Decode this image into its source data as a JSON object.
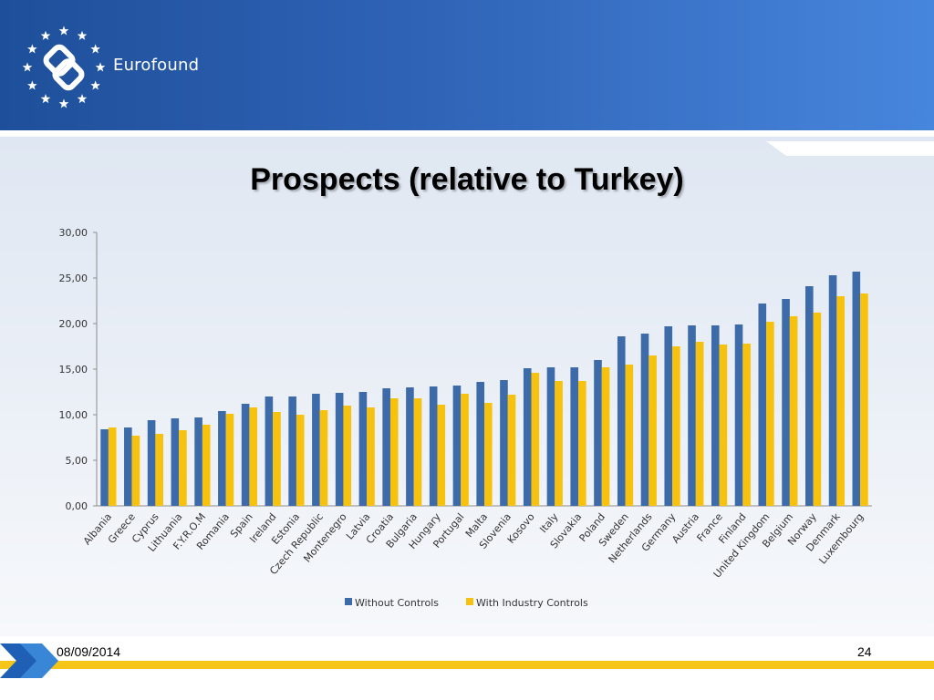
{
  "header": {
    "brand": "Eurofound",
    "icon": "eurofound-logo-icon"
  },
  "slide": {
    "title": "Prospects (relative to Turkey)"
  },
  "footer": {
    "date": "08/09/2014",
    "page_number": "24"
  },
  "colors": {
    "without_controls": "#3d6aa8",
    "with_industry_controls": "#f6c20e",
    "header_dark": "#1e4f9a",
    "header_light": "#4786dd",
    "footer_gold": "#f5c518"
  },
  "chart_data": {
    "type": "bar",
    "ylim": [
      0,
      30
    ],
    "yticks": [
      "0,00",
      "5,00",
      "10,00",
      "15,00",
      "20,00",
      "25,00",
      "30,00"
    ],
    "grid": false,
    "legend_position": "bottom",
    "categories": [
      "Albania",
      "Greece",
      "Cyprus",
      "Lithuania",
      "F.Y.R.O.M",
      "Romania",
      "Spain",
      "Ireland",
      "Estonia",
      "Czech Republic",
      "Montenegro",
      "Latvia",
      "Croatia",
      "Bulgaria",
      "Hungary",
      "Portugal",
      "Malta",
      "Slovenia",
      "Kosovo",
      "Italy",
      "Slovakia",
      "Poland",
      "Sweden",
      "Netherlands",
      "Germany",
      "Austria",
      "France",
      "Finland",
      "United Kingdom",
      "Belgium",
      "Norway",
      "Denmark",
      "Luxembourg"
    ],
    "series": [
      {
        "name": "Without Controls",
        "values": [
          8.4,
          8.6,
          9.4,
          9.6,
          9.7,
          10.4,
          11.2,
          12.0,
          12.0,
          12.3,
          12.4,
          12.5,
          12.9,
          13.0,
          13.1,
          13.2,
          13.6,
          13.8,
          15.1,
          15.2,
          15.2,
          16.0,
          18.6,
          18.9,
          19.7,
          19.8,
          19.8,
          19.9,
          22.2,
          22.7,
          24.1,
          25.3,
          25.7
        ]
      },
      {
        "name": "With Industry Controls",
        "values": [
          8.6,
          7.7,
          7.9,
          8.3,
          8.9,
          10.1,
          10.8,
          10.3,
          10.0,
          10.5,
          11.0,
          10.8,
          11.8,
          11.8,
          11.1,
          12.3,
          11.3,
          12.2,
          14.6,
          13.7,
          13.7,
          15.2,
          15.5,
          16.5,
          17.5,
          18.0,
          17.7,
          17.8,
          20.2,
          20.8,
          21.2,
          23.0,
          23.3
        ]
      }
    ]
  }
}
